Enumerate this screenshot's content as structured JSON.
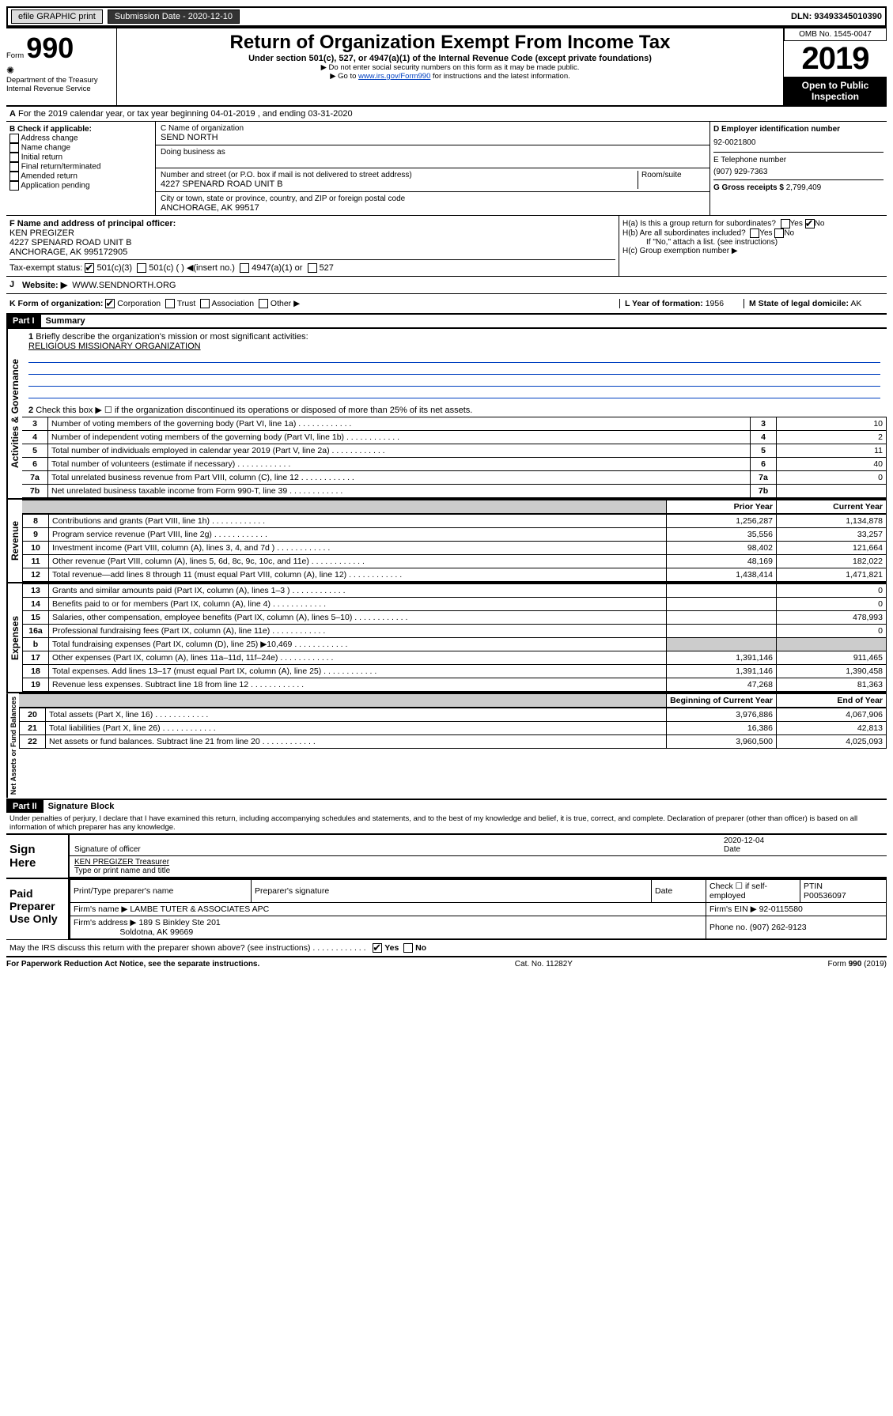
{
  "topbar": {
    "efile": "efile GRAPHIC print",
    "submission_label": "Submission Date - 2020-12-10",
    "dln_label": "DLN: 93493345010390"
  },
  "header": {
    "form_word": "Form",
    "form_num": "990",
    "dept": "Department of the Treasury",
    "irs": "Internal Revenue Service",
    "title": "Return of Organization Exempt From Income Tax",
    "sub1": "Under section 501(c), 527, or 4947(a)(1) of the Internal Revenue Code (except private foundations)",
    "sub2": "▶ Do not enter social security numbers on this form as it may be made public.",
    "sub3_pre": "▶ Go to ",
    "sub3_link": "www.irs.gov/Form990",
    "sub3_post": " for instructions and the latest information.",
    "omb": "OMB No. 1545-0047",
    "year": "2019",
    "open1": "Open to Public",
    "open2": "Inspection"
  },
  "lineA": "For the 2019 calendar year, or tax year beginning 04-01-2019    , and ending 03-31-2020",
  "boxB": {
    "label": "B Check if applicable:",
    "items": [
      "Address change",
      "Name change",
      "Initial return",
      "Final return/terminated",
      "Amended return",
      "Application pending"
    ]
  },
  "boxC": {
    "name_lbl": "C Name of organization",
    "name": "SEND NORTH",
    "dba_lbl": "Doing business as",
    "addr_lbl": "Number and street (or P.O. box if mail is not delivered to street address)",
    "room_lbl": "Room/suite",
    "addr": "4227 SPENARD ROAD UNIT B",
    "city_lbl": "City or town, state or province, country, and ZIP or foreign postal code",
    "city": "ANCHORAGE, AK  99517"
  },
  "boxD": {
    "lbl": "D Employer identification number",
    "val": "92-0021800"
  },
  "boxE": {
    "lbl": "E Telephone number",
    "val": "(907) 929-7363"
  },
  "boxG": {
    "lbl": "G Gross receipts $",
    "val": "2,799,409"
  },
  "boxF": {
    "lbl": "F Name and address of principal officer:",
    "name": "KEN PREGIZER",
    "addr1": "4227 SPENARD ROAD UNIT B",
    "addr2": "ANCHORAGE, AK  995172905"
  },
  "boxH": {
    "a": "H(a)  Is this a group return for subordinates?",
    "b": "H(b)  Are all subordinates included?",
    "note": "If \"No,\" attach a list. (see instructions)",
    "c": "H(c)  Group exemption number ▶",
    "yes": "Yes",
    "no": "No"
  },
  "taxexempt": {
    "lbl": "Tax-exempt status:",
    "c3": "501(c)(3)",
    "c": "501(c) (  ) ◀(insert no.)",
    "a": "4947(a)(1) or",
    "s": "527"
  },
  "boxJ": {
    "lbl": "J",
    "w": "Website: ▶",
    "val": "WWW.SENDNORTH.ORG"
  },
  "boxK": {
    "lbl": "K Form of organization:",
    "corp": "Corporation",
    "trust": "Trust",
    "assoc": "Association",
    "other": "Other ▶"
  },
  "boxL": {
    "lbl": "L Year of formation:",
    "val": "1956"
  },
  "boxM": {
    "lbl": "M State of legal domicile:",
    "val": "AK"
  },
  "part1": {
    "hdr": "Part I",
    "title": "Summary",
    "q1": "Briefly describe the organization's mission or most significant activities:",
    "mission": "RELIGIOUS MISSIONARY ORGANIZATION",
    "q2": "Check this box ▶ ☐  if the organization discontinued its operations or disposed of more than 25% of its net assets.",
    "rows_gov": [
      {
        "n": "3",
        "t": "Number of voting members of the governing body (Part VI, line 1a)",
        "v": "10"
      },
      {
        "n": "4",
        "t": "Number of independent voting members of the governing body (Part VI, line 1b)",
        "v": "2"
      },
      {
        "n": "5",
        "t": "Total number of individuals employed in calendar year 2019 (Part V, line 2a)",
        "v": "11"
      },
      {
        "n": "6",
        "t": "Total number of volunteers (estimate if necessary)",
        "v": "40"
      },
      {
        "n": "7a",
        "t": "Total unrelated business revenue from Part VIII, column (C), line 12",
        "v": "0"
      },
      {
        "n": "7b",
        "t": "Net unrelated business taxable income from Form 990-T, line 39",
        "v": ""
      }
    ],
    "prior": "Prior Year",
    "curr": "Current Year",
    "rows_rev": [
      {
        "n": "8",
        "t": "Contributions and grants (Part VIII, line 1h)",
        "p": "1,256,287",
        "c": "1,134,878"
      },
      {
        "n": "9",
        "t": "Program service revenue (Part VIII, line 2g)",
        "p": "35,556",
        "c": "33,257"
      },
      {
        "n": "10",
        "t": "Investment income (Part VIII, column (A), lines 3, 4, and 7d )",
        "p": "98,402",
        "c": "121,664"
      },
      {
        "n": "11",
        "t": "Other revenue (Part VIII, column (A), lines 5, 6d, 8c, 9c, 10c, and 11e)",
        "p": "48,169",
        "c": "182,022"
      },
      {
        "n": "12",
        "t": "Total revenue—add lines 8 through 11 (must equal Part VIII, column (A), line 12)",
        "p": "1,438,414",
        "c": "1,471,821"
      }
    ],
    "rows_exp": [
      {
        "n": "13",
        "t": "Grants and similar amounts paid (Part IX, column (A), lines 1–3 )",
        "p": "",
        "c": "0"
      },
      {
        "n": "14",
        "t": "Benefits paid to or for members (Part IX, column (A), line 4)",
        "p": "",
        "c": "0"
      },
      {
        "n": "15",
        "t": "Salaries, other compensation, employee benefits (Part IX, column (A), lines 5–10)",
        "p": "",
        "c": "478,993"
      },
      {
        "n": "16a",
        "t": "Professional fundraising fees (Part IX, column (A), line 11e)",
        "p": "",
        "c": "0"
      },
      {
        "n": "b",
        "t": "Total fundraising expenses (Part IX, column (D), line 25) ▶10,469",
        "p": "shade",
        "c": "shade"
      },
      {
        "n": "17",
        "t": "Other expenses (Part IX, column (A), lines 11a–11d, 11f–24e)",
        "p": "1,391,146",
        "c": "911,465"
      },
      {
        "n": "18",
        "t": "Total expenses. Add lines 13–17 (must equal Part IX, column (A), line 25)",
        "p": "1,391,146",
        "c": "1,390,458"
      },
      {
        "n": "19",
        "t": "Revenue less expenses. Subtract line 18 from line 12",
        "p": "47,268",
        "c": "81,363"
      }
    ],
    "begin": "Beginning of Current Year",
    "end": "End of Year",
    "rows_net": [
      {
        "n": "20",
        "t": "Total assets (Part X, line 16)",
        "p": "3,976,886",
        "c": "4,067,906"
      },
      {
        "n": "21",
        "t": "Total liabilities (Part X, line 26)",
        "p": "16,386",
        "c": "42,813"
      },
      {
        "n": "22",
        "t": "Net assets or fund balances. Subtract line 21 from line 20",
        "p": "3,960,500",
        "c": "4,025,093"
      }
    ],
    "vlabels": {
      "gov": "Activities & Governance",
      "rev": "Revenue",
      "exp": "Expenses",
      "net": "Net Assets or Fund Balances"
    }
  },
  "part2": {
    "hdr": "Part II",
    "title": "Signature Block",
    "perjury": "Under penalties of perjury, I declare that I have examined this return, including accompanying schedules and statements, and to the best of my knowledge and belief, it is true, correct, and complete. Declaration of preparer (other than officer) is based on all information of which preparer has any knowledge.",
    "sign_here": "Sign Here",
    "sig_officer": "Signature of officer",
    "date": "Date",
    "date_val": "2020-12-04",
    "officer_name": "KEN PREGIZER Treasurer",
    "typed": "Type or print name and title",
    "paid": "Paid Preparer Use Only",
    "prep_name_lbl": "Print/Type preparer's name",
    "prep_sig_lbl": "Preparer's signature",
    "check_se": "Check ☐ if self-employed",
    "ptin_lbl": "PTIN",
    "ptin": "P00536097",
    "firm_name_lbl": "Firm's name   ▶",
    "firm_name": "LAMBE TUTER & ASSOCIATES APC",
    "firm_ein_lbl": "Firm's EIN ▶",
    "firm_ein": "92-0115580",
    "firm_addr_lbl": "Firm's address ▶",
    "firm_addr1": "189 S Binkley Ste 201",
    "firm_addr2": "Soldotna, AK  99669",
    "phone_lbl": "Phone no.",
    "phone": "(907) 262-9123",
    "discuss": "May the IRS discuss this return with the preparer shown above? (see instructions)",
    "yes": "Yes",
    "no": "No"
  },
  "footer": {
    "pra": "For Paperwork Reduction Act Notice, see the separate instructions.",
    "cat": "Cat. No. 11282Y",
    "form": "Form 990 (2019)"
  }
}
